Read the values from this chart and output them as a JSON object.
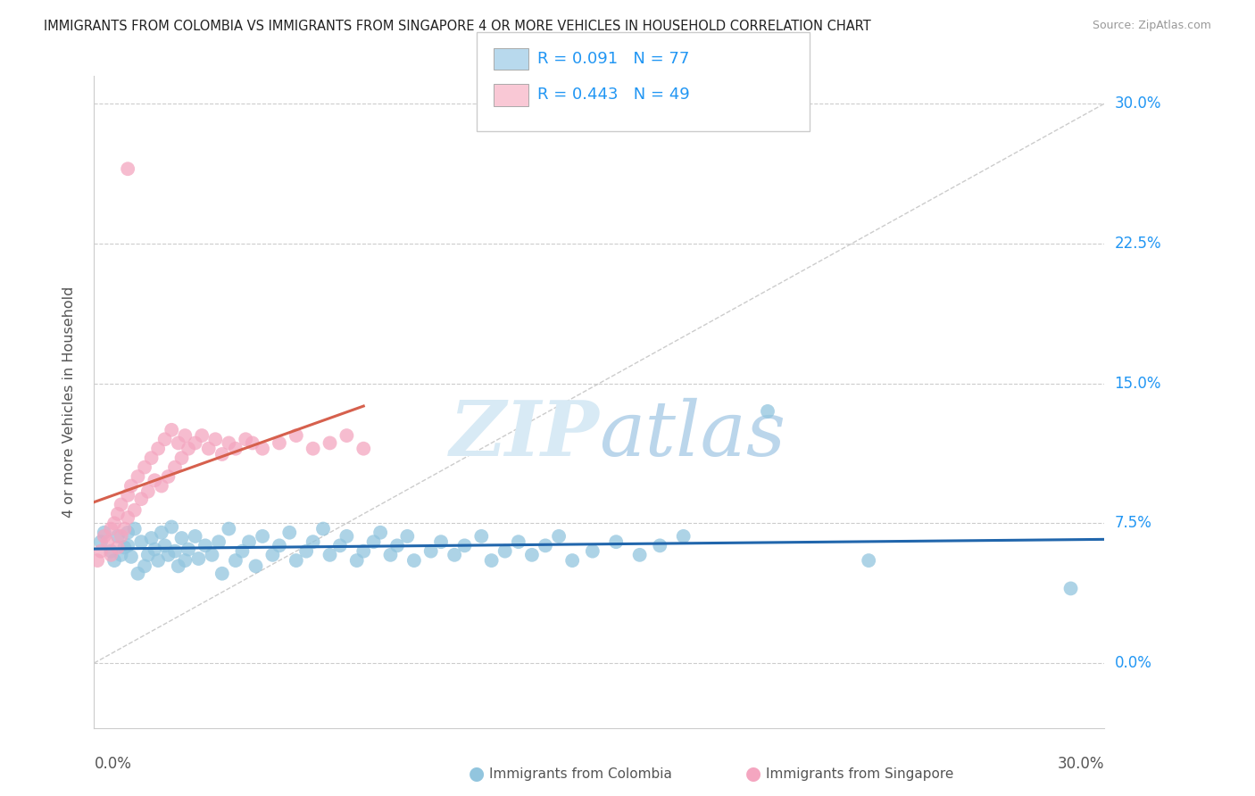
{
  "title": "IMMIGRANTS FROM COLOMBIA VS IMMIGRANTS FROM SINGAPORE 4 OR MORE VEHICLES IN HOUSEHOLD CORRELATION CHART",
  "source": "Source: ZipAtlas.com",
  "ylabel": "4 or more Vehicles in Household",
  "ytick_vals": [
    0.0,
    0.075,
    0.15,
    0.225,
    0.3
  ],
  "ytick_labels": [
    "0.0%",
    "7.5%",
    "15.0%",
    "22.5%",
    "30.0%"
  ],
  "xmin": 0.0,
  "xmax": 0.3,
  "ymin": -0.035,
  "ymax": 0.315,
  "colombia_R": 0.091,
  "colombia_N": 77,
  "singapore_R": 0.443,
  "singapore_N": 49,
  "colombia_dot_color": "#92c5de",
  "singapore_dot_color": "#f4a6c0",
  "colombia_line_color": "#2166ac",
  "singapore_line_color": "#d6604d",
  "colombia_legend_color": "#b8d9ed",
  "singapore_legend_color": "#f9c8d5",
  "watermark_color": "#d8eaf5",
  "colombia_x": [
    0.002,
    0.003,
    0.005,
    0.006,
    0.007,
    0.008,
    0.009,
    0.01,
    0.01,
    0.011,
    0.012,
    0.013,
    0.014,
    0.015,
    0.016,
    0.017,
    0.018,
    0.019,
    0.02,
    0.021,
    0.022,
    0.023,
    0.024,
    0.025,
    0.026,
    0.027,
    0.028,
    0.03,
    0.031,
    0.033,
    0.035,
    0.037,
    0.038,
    0.04,
    0.042,
    0.044,
    0.046,
    0.048,
    0.05,
    0.053,
    0.055,
    0.058,
    0.06,
    0.063,
    0.065,
    0.068,
    0.07,
    0.073,
    0.075,
    0.078,
    0.08,
    0.083,
    0.085,
    0.088,
    0.09,
    0.093,
    0.095,
    0.1,
    0.103,
    0.107,
    0.11,
    0.115,
    0.118,
    0.122,
    0.126,
    0.13,
    0.134,
    0.138,
    0.142,
    0.148,
    0.155,
    0.162,
    0.168,
    0.175,
    0.2,
    0.23,
    0.29
  ],
  "colombia_y": [
    0.065,
    0.07,
    0.06,
    0.055,
    0.068,
    0.058,
    0.062,
    0.07,
    0.063,
    0.057,
    0.072,
    0.048,
    0.065,
    0.052,
    0.058,
    0.067,
    0.061,
    0.055,
    0.07,
    0.063,
    0.058,
    0.073,
    0.06,
    0.052,
    0.067,
    0.055,
    0.061,
    0.068,
    0.056,
    0.063,
    0.058,
    0.065,
    0.048,
    0.072,
    0.055,
    0.06,
    0.065,
    0.052,
    0.068,
    0.058,
    0.063,
    0.07,
    0.055,
    0.06,
    0.065,
    0.072,
    0.058,
    0.063,
    0.068,
    0.055,
    0.06,
    0.065,
    0.07,
    0.058,
    0.063,
    0.068,
    0.055,
    0.06,
    0.065,
    0.058,
    0.063,
    0.068,
    0.055,
    0.06,
    0.065,
    0.058,
    0.063,
    0.068,
    0.055,
    0.06,
    0.065,
    0.058,
    0.063,
    0.068,
    0.135,
    0.055,
    0.04
  ],
  "singapore_x": [
    0.001,
    0.002,
    0.003,
    0.004,
    0.005,
    0.005,
    0.006,
    0.007,
    0.007,
    0.008,
    0.008,
    0.009,
    0.01,
    0.01,
    0.011,
    0.012,
    0.013,
    0.014,
    0.015,
    0.016,
    0.017,
    0.018,
    0.019,
    0.02,
    0.021,
    0.022,
    0.023,
    0.024,
    0.025,
    0.026,
    0.027,
    0.028,
    0.03,
    0.032,
    0.034,
    0.036,
    0.038,
    0.04,
    0.042,
    0.045,
    0.047,
    0.05,
    0.055,
    0.06,
    0.065,
    0.07,
    0.075,
    0.08,
    0.01
  ],
  "singapore_y": [
    0.055,
    0.06,
    0.068,
    0.065,
    0.072,
    0.058,
    0.075,
    0.062,
    0.08,
    0.068,
    0.085,
    0.072,
    0.09,
    0.078,
    0.095,
    0.082,
    0.1,
    0.088,
    0.105,
    0.092,
    0.11,
    0.098,
    0.115,
    0.095,
    0.12,
    0.1,
    0.125,
    0.105,
    0.118,
    0.11,
    0.122,
    0.115,
    0.118,
    0.122,
    0.115,
    0.12,
    0.112,
    0.118,
    0.115,
    0.12,
    0.118,
    0.115,
    0.118,
    0.122,
    0.115,
    0.118,
    0.122,
    0.115,
    0.265
  ]
}
